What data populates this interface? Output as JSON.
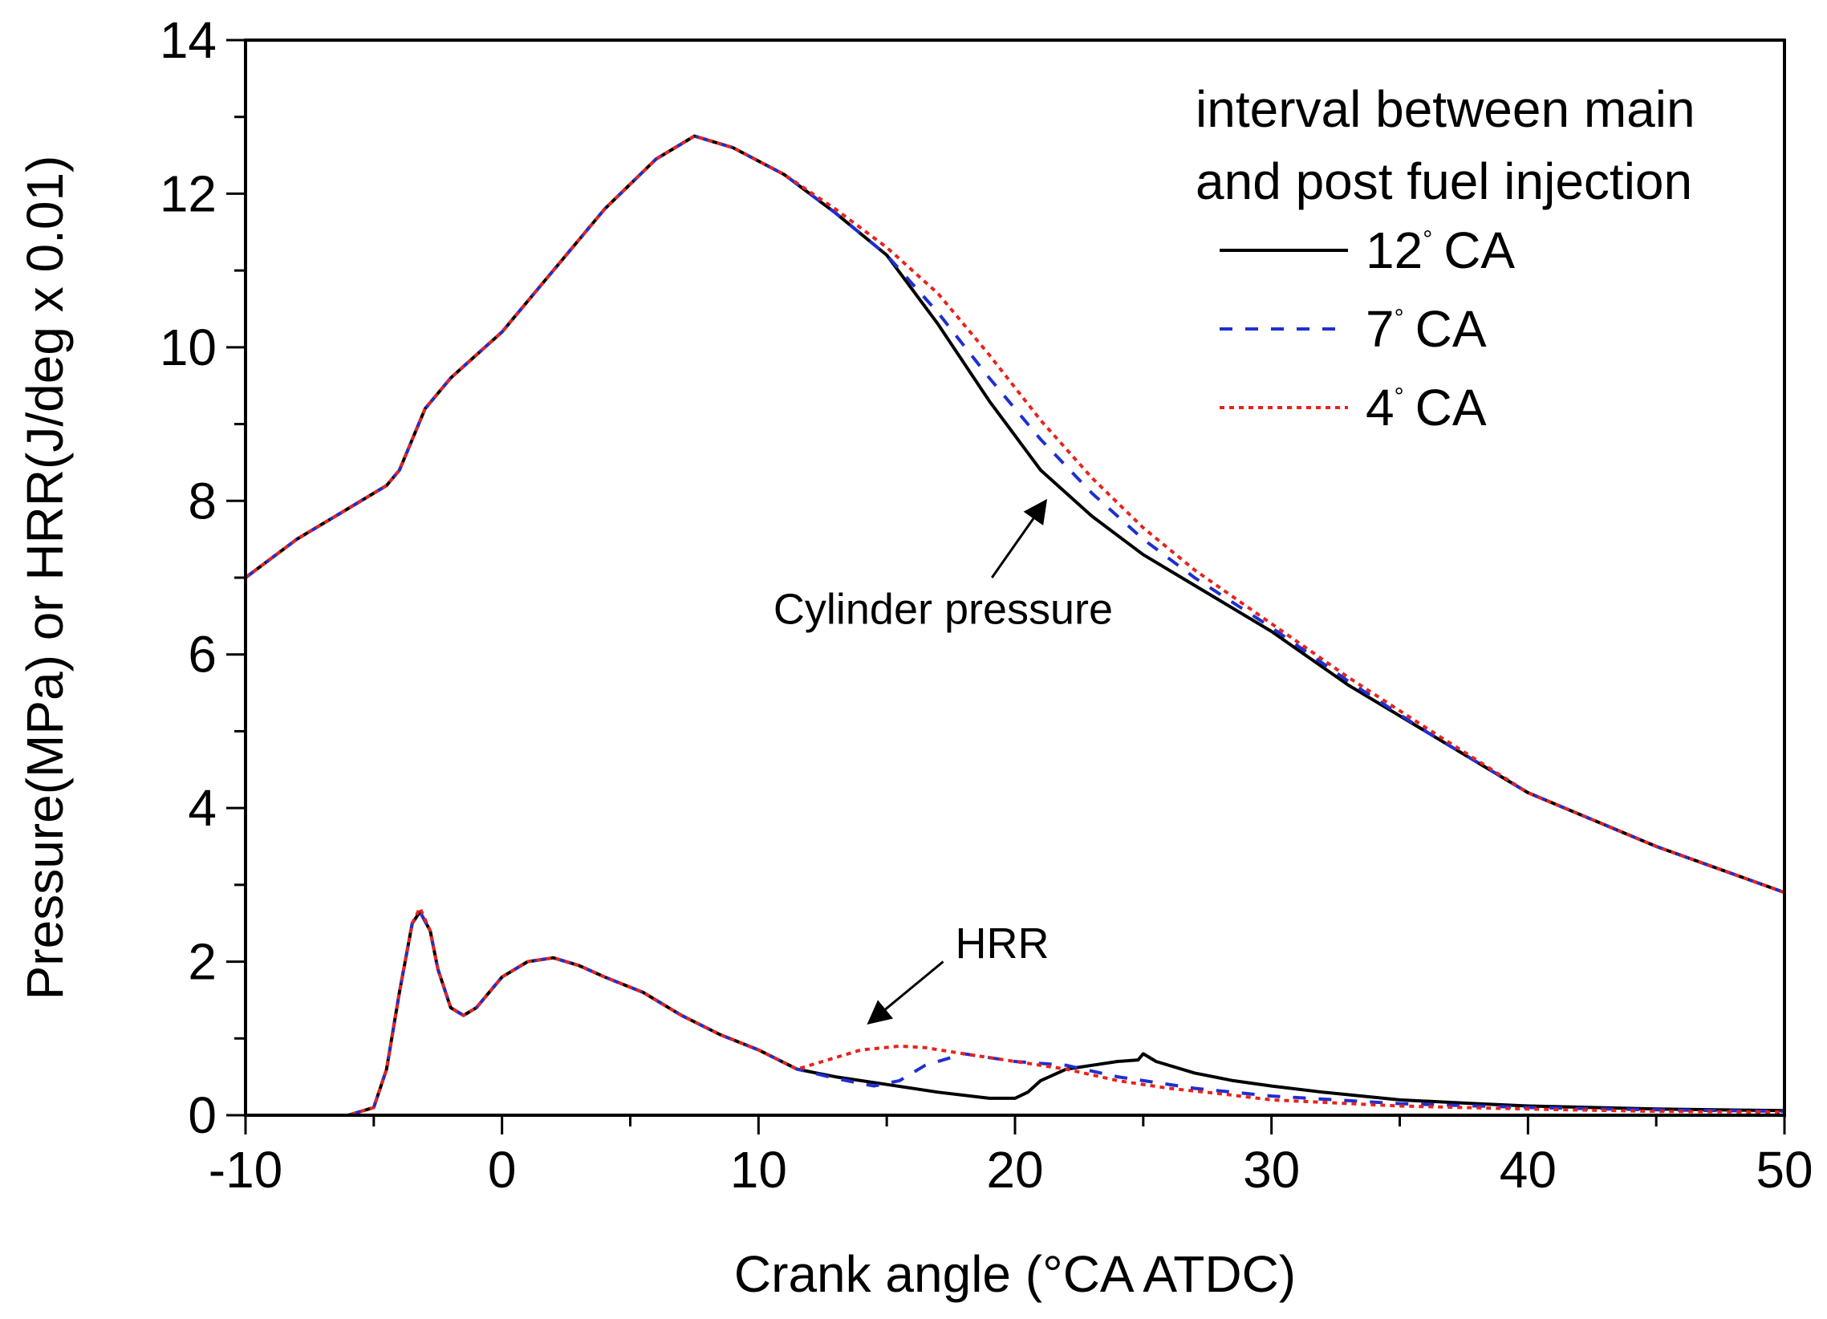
{
  "chart_data": {
    "type": "line",
    "title": "",
    "xlabel": "Crank angle (°CA ATDC)",
    "ylabel": "Pressure(MPa) or HRR(J/deg x 0.01)",
    "xlim": [
      -10,
      50
    ],
    "ylim": [
      0,
      14
    ],
    "x_ticks": [
      "-10",
      "0",
      "10",
      "20",
      "30",
      "40",
      "50"
    ],
    "y_ticks": [
      "0",
      "2",
      "4",
      "6",
      "8",
      "10",
      "12",
      "14"
    ],
    "legend_title": [
      "interval between main",
      "and post fuel injection"
    ],
    "legend_position": "top-right",
    "series": [
      {
        "name": "12° CA",
        "label_num": "12",
        "label_unit": "CA",
        "color": "#000000",
        "dash": "solid",
        "pressure": [
          [
            -10,
            7.0
          ],
          [
            -8,
            7.5
          ],
          [
            -6,
            7.9
          ],
          [
            -4.5,
            8.2
          ],
          [
            -4,
            8.4
          ],
          [
            -3.5,
            8.8
          ],
          [
            -3,
            9.2
          ],
          [
            -2,
            9.6
          ],
          [
            -1,
            9.9
          ],
          [
            0,
            10.2
          ],
          [
            2,
            11.0
          ],
          [
            4,
            11.8
          ],
          [
            6,
            12.45
          ],
          [
            7.5,
            12.75
          ],
          [
            9,
            12.6
          ],
          [
            11,
            12.25
          ],
          [
            13,
            11.75
          ],
          [
            15,
            11.2
          ],
          [
            17,
            10.3
          ],
          [
            19,
            9.3
          ],
          [
            21,
            8.4
          ],
          [
            23,
            7.8
          ],
          [
            25,
            7.3
          ],
          [
            27,
            6.9
          ],
          [
            30,
            6.3
          ],
          [
            33,
            5.6
          ],
          [
            36,
            5.0
          ],
          [
            40,
            4.2
          ],
          [
            45,
            3.5
          ],
          [
            50,
            2.9
          ]
        ],
        "hrr": [
          [
            -10,
            0
          ],
          [
            -6,
            0
          ],
          [
            -5,
            0.1
          ],
          [
            -4.5,
            0.6
          ],
          [
            -4,
            1.6
          ],
          [
            -3.5,
            2.5
          ],
          [
            -3.2,
            2.65
          ],
          [
            -2.8,
            2.4
          ],
          [
            -2.5,
            1.9
          ],
          [
            -2,
            1.4
          ],
          [
            -1.5,
            1.3
          ],
          [
            -1,
            1.4
          ],
          [
            0,
            1.8
          ],
          [
            1,
            2.0
          ],
          [
            2,
            2.05
          ],
          [
            3,
            1.95
          ],
          [
            4,
            1.8
          ],
          [
            5.5,
            1.6
          ],
          [
            7,
            1.3
          ],
          [
            8.5,
            1.05
          ],
          [
            10,
            0.85
          ],
          [
            11.5,
            0.6
          ],
          [
            13,
            0.5
          ],
          [
            15,
            0.4
          ],
          [
            17,
            0.3
          ],
          [
            19,
            0.22
          ],
          [
            20,
            0.22
          ],
          [
            20.5,
            0.3
          ],
          [
            21,
            0.45
          ],
          [
            22,
            0.6
          ],
          [
            23,
            0.65
          ],
          [
            24,
            0.7
          ],
          [
            24.8,
            0.72
          ],
          [
            25,
            0.8
          ],
          [
            25.5,
            0.7
          ],
          [
            27,
            0.55
          ],
          [
            28.5,
            0.45
          ],
          [
            30,
            0.38
          ],
          [
            32,
            0.3
          ],
          [
            35,
            0.2
          ],
          [
            38,
            0.15
          ],
          [
            40,
            0.12
          ],
          [
            45,
            0.08
          ],
          [
            50,
            0.06
          ]
        ]
      },
      {
        "name": "7° CA",
        "label_num": "7",
        "label_unit": "CA",
        "color": "#1f2fd0",
        "dash": "16,16",
        "pressure": [
          [
            -10,
            7.0
          ],
          [
            -8,
            7.5
          ],
          [
            -6,
            7.9
          ],
          [
            -4.5,
            8.2
          ],
          [
            -4,
            8.4
          ],
          [
            -3.5,
            8.8
          ],
          [
            -3,
            9.2
          ],
          [
            -2,
            9.6
          ],
          [
            -1,
            9.9
          ],
          [
            0,
            10.2
          ],
          [
            2,
            11.0
          ],
          [
            4,
            11.8
          ],
          [
            6,
            12.45
          ],
          [
            7.5,
            12.75
          ],
          [
            9,
            12.6
          ],
          [
            11,
            12.25
          ],
          [
            13,
            11.75
          ],
          [
            15,
            11.2
          ],
          [
            17,
            10.45
          ],
          [
            19,
            9.6
          ],
          [
            21,
            8.8
          ],
          [
            23,
            8.1
          ],
          [
            25,
            7.5
          ],
          [
            27,
            7.0
          ],
          [
            30,
            6.35
          ],
          [
            33,
            5.65
          ],
          [
            36,
            5.0
          ],
          [
            40,
            4.2
          ],
          [
            45,
            3.5
          ],
          [
            50,
            2.9
          ]
        ],
        "hrr": [
          [
            -10,
            0
          ],
          [
            -6,
            0
          ],
          [
            -5,
            0.1
          ],
          [
            -4.5,
            0.6
          ],
          [
            -4,
            1.6
          ],
          [
            -3.5,
            2.5
          ],
          [
            -3.2,
            2.65
          ],
          [
            -2.8,
            2.4
          ],
          [
            -2.5,
            1.9
          ],
          [
            -2,
            1.4
          ],
          [
            -1.5,
            1.3
          ],
          [
            -1,
            1.4
          ],
          [
            0,
            1.8
          ],
          [
            1,
            2.0
          ],
          [
            2,
            2.05
          ],
          [
            3,
            1.95
          ],
          [
            4,
            1.8
          ],
          [
            5.5,
            1.6
          ],
          [
            7,
            1.3
          ],
          [
            8.5,
            1.05
          ],
          [
            10,
            0.85
          ],
          [
            11.5,
            0.6
          ],
          [
            13,
            0.48
          ],
          [
            14.5,
            0.38
          ],
          [
            15.5,
            0.45
          ],
          [
            16.5,
            0.65
          ],
          [
            18,
            0.8
          ],
          [
            20,
            0.7
          ],
          [
            22,
            0.65
          ],
          [
            24,
            0.5
          ],
          [
            25,
            0.45
          ],
          [
            27,
            0.35
          ],
          [
            30,
            0.25
          ],
          [
            35,
            0.15
          ],
          [
            40,
            0.1
          ],
          [
            45,
            0.07
          ],
          [
            50,
            0.05
          ]
        ]
      },
      {
        "name": "4° CA",
        "label_num": "4",
        "label_unit": "CA",
        "color": "#e8231c",
        "dash": "6,6",
        "pressure": [
          [
            -10,
            7.0
          ],
          [
            -8,
            7.5
          ],
          [
            -6,
            7.9
          ],
          [
            -4.5,
            8.2
          ],
          [
            -4,
            8.4
          ],
          [
            -3.5,
            8.8
          ],
          [
            -3,
            9.2
          ],
          [
            -2,
            9.6
          ],
          [
            -1,
            9.9
          ],
          [
            0,
            10.2
          ],
          [
            2,
            11.0
          ],
          [
            4,
            11.8
          ],
          [
            6,
            12.45
          ],
          [
            7.5,
            12.75
          ],
          [
            9,
            12.6
          ],
          [
            11,
            12.25
          ],
          [
            13,
            11.8
          ],
          [
            15,
            11.3
          ],
          [
            17,
            10.7
          ],
          [
            19,
            9.9
          ],
          [
            21,
            9.05
          ],
          [
            23,
            8.3
          ],
          [
            25,
            7.65
          ],
          [
            27,
            7.1
          ],
          [
            30,
            6.4
          ],
          [
            33,
            5.7
          ],
          [
            36,
            5.05
          ],
          [
            40,
            4.2
          ],
          [
            45,
            3.5
          ],
          [
            50,
            2.9
          ]
        ],
        "hrr": [
          [
            -10,
            0
          ],
          [
            -6,
            0
          ],
          [
            -5,
            0.1
          ],
          [
            -4.5,
            0.6
          ],
          [
            -4,
            1.6
          ],
          [
            -3.5,
            2.5
          ],
          [
            -3.2,
            2.7
          ],
          [
            -2.8,
            2.4
          ],
          [
            -2.5,
            1.9
          ],
          [
            -2,
            1.4
          ],
          [
            -1.5,
            1.3
          ],
          [
            -1,
            1.4
          ],
          [
            0,
            1.8
          ],
          [
            1,
            2.0
          ],
          [
            2,
            2.05
          ],
          [
            3,
            1.95
          ],
          [
            4,
            1.8
          ],
          [
            5.5,
            1.6
          ],
          [
            7,
            1.3
          ],
          [
            8.5,
            1.05
          ],
          [
            10,
            0.85
          ],
          [
            11.5,
            0.6
          ],
          [
            12.5,
            0.7
          ],
          [
            14,
            0.85
          ],
          [
            15.5,
            0.9
          ],
          [
            16.5,
            0.88
          ],
          [
            18,
            0.8
          ],
          [
            20,
            0.7
          ],
          [
            22,
            0.6
          ],
          [
            24,
            0.45
          ],
          [
            26,
            0.35
          ],
          [
            28,
            0.28
          ],
          [
            30,
            0.2
          ],
          [
            35,
            0.12
          ],
          [
            40,
            0.08
          ],
          [
            45,
            0.05
          ],
          [
            50,
            0.04
          ]
        ]
      }
    ],
    "annotations": [
      {
        "text": "Cylinder pressure",
        "arrow_tail": [
          19.1,
          7.0
        ],
        "arrow_head": [
          21.2,
          8.0
        ],
        "label_at": [
          17.2,
          6.4
        ]
      },
      {
        "text": "HRR",
        "arrow_tail": [
          17.2,
          2.0
        ],
        "arrow_head": [
          14.3,
          1.2
        ],
        "label_at": [
          19.5,
          2.05
        ]
      }
    ]
  }
}
